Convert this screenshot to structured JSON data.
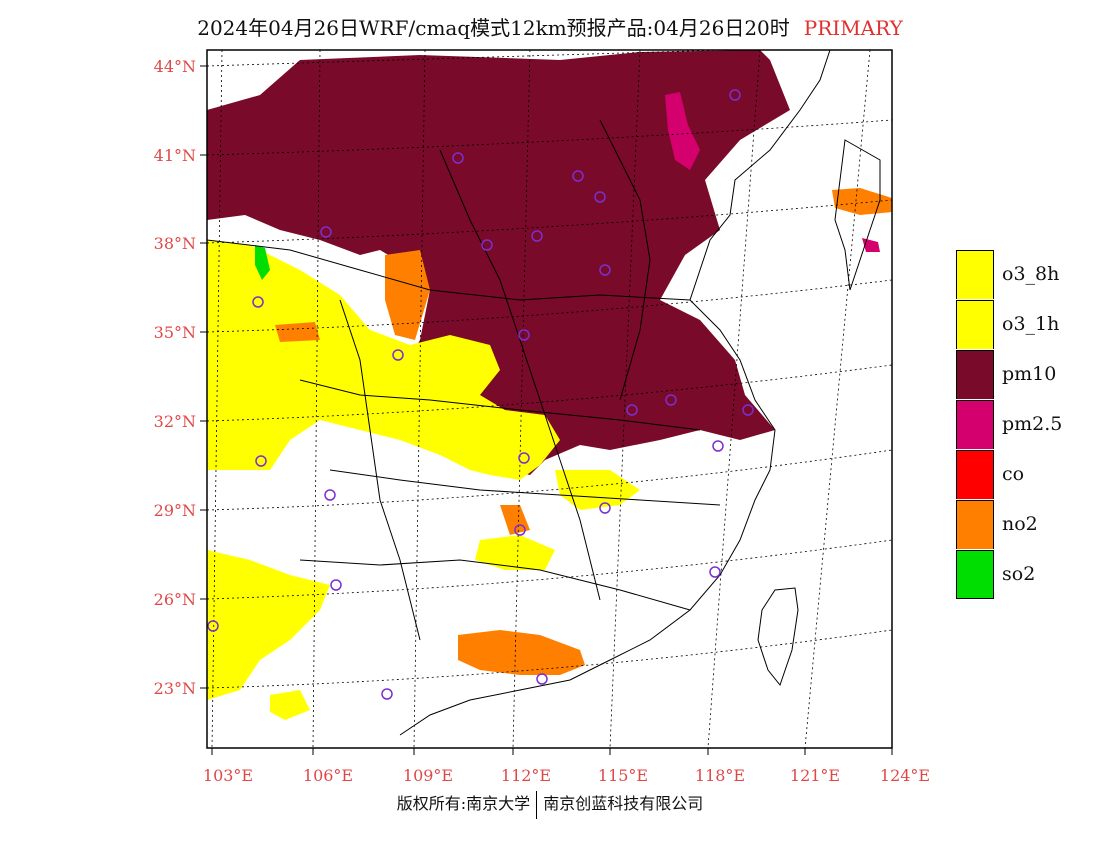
{
  "header": {
    "title": "2024年04月26日WRF/cmaq模式12km预报产品:04月26日20时",
    "product_tag": "PRIMARY"
  },
  "map": {
    "latitude_labels": [
      "44°N",
      "41°N",
      "38°N",
      "35°N",
      "32°N",
      "29°N",
      "26°N",
      "23°N"
    ],
    "longitude_labels": [
      "103°E",
      "106°E",
      "109°E",
      "112°E",
      "115°E",
      "118°E",
      "121°E",
      "124°E"
    ]
  },
  "legend": {
    "items": [
      {
        "label": "o3_8h",
        "color": "#ffff00"
      },
      {
        "label": "o3_1h",
        "color": "#ffff00"
      },
      {
        "label": "pm10",
        "color": "#7a0a2a"
      },
      {
        "label": "pm2.5",
        "color": "#d4006e"
      },
      {
        "label": "co",
        "color": "#ff0000"
      },
      {
        "label": "no2",
        "color": "#ff8000"
      },
      {
        "label": "so2",
        "color": "#00dd00"
      }
    ]
  },
  "footer": {
    "copyright_left": "版权所有:南京大学",
    "copyright_right": "南京创蓝科技有限公司"
  },
  "colors": {
    "label_red": "#e04848",
    "pm10": "#7a0a2a",
    "o3": "#ffff00",
    "no2": "#ff8000",
    "pm25": "#d4006e",
    "so2": "#00dd00",
    "site_marker": "#7b2fd0"
  }
}
